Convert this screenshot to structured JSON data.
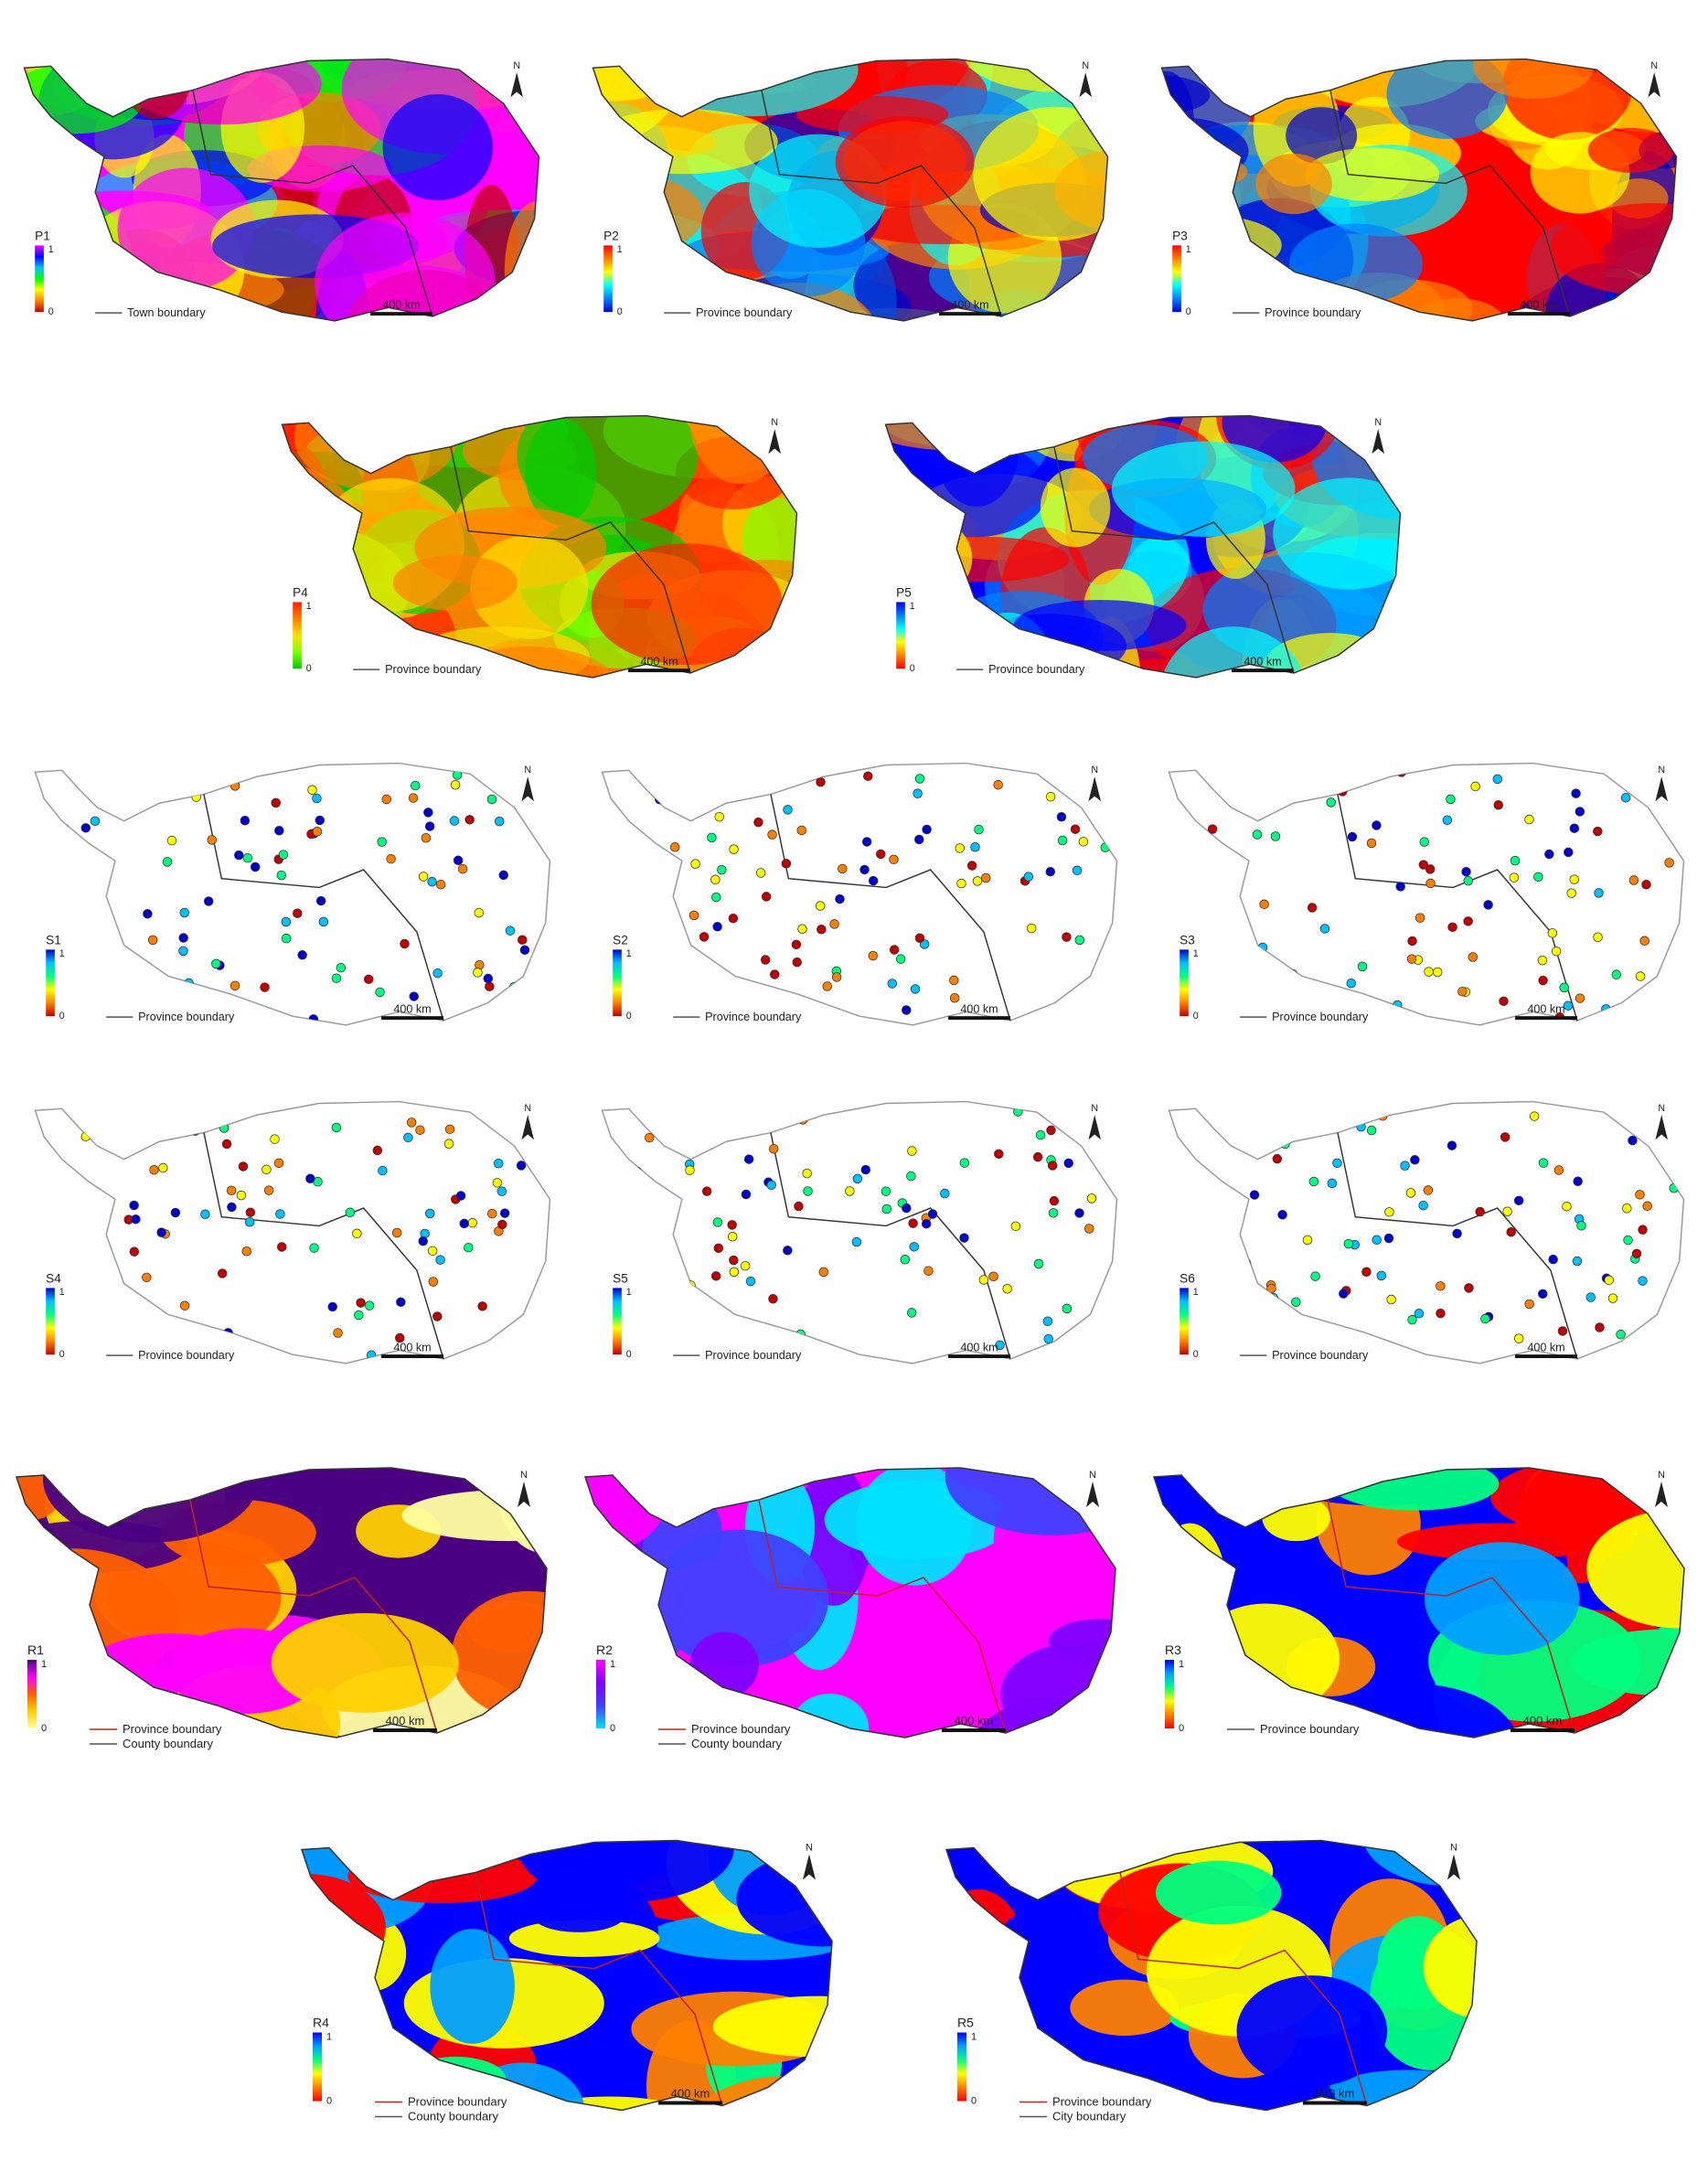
{
  "north_label": "N",
  "scale_text": "400 km",
  "range_max": "1",
  "range_min": "0",
  "panels": [
    {
      "id": "P1",
      "label": "P1",
      "ramp": [
        "#ff00ff",
        "#0000ff",
        "#00c0ff",
        "#00ff00",
        "#ffff00",
        "#ff8000",
        "#c00000"
      ],
      "legend": [
        "Town boundary"
      ],
      "style": "raster"
    },
    {
      "id": "P2",
      "label": "P2",
      "ramp": [
        "#ff0000",
        "#ff8000",
        "#ffff00",
        "#00ffff",
        "#0080ff",
        "#0000cc"
      ],
      "legend": [
        "Province boundary"
      ],
      "style": "raster"
    },
    {
      "id": "P3",
      "label": "P3",
      "ramp": [
        "#ff0000",
        "#ff8000",
        "#ffff00",
        "#00ffff",
        "#0080ff",
        "#0000cc"
      ],
      "legend": [
        "Province boundary"
      ],
      "style": "raster"
    },
    {
      "id": "P4",
      "label": "P4",
      "ramp": [
        "#ff2000",
        "#ff8000",
        "#ffe000",
        "#80ff00",
        "#00cc00"
      ],
      "legend": [
        "Province boundary"
      ],
      "style": "raster"
    },
    {
      "id": "P5",
      "label": "P5",
      "ramp": [
        "#0000ff",
        "#0080ff",
        "#00ffff",
        "#ffff00",
        "#ff8000",
        "#ff0000"
      ],
      "legend": [
        "Province boundary"
      ],
      "style": "raster"
    },
    {
      "id": "S1",
      "label": "S1",
      "ramp": [
        "#0000cc",
        "#00c0ff",
        "#00ff80",
        "#ffff00",
        "#ff8000",
        "#c00000"
      ],
      "legend": [
        "Province boundary"
      ],
      "style": "points"
    },
    {
      "id": "S2",
      "label": "S2",
      "ramp": [
        "#0000cc",
        "#00c0ff",
        "#00ff80",
        "#ffff00",
        "#ff8000",
        "#c00000"
      ],
      "legend": [
        "Province boundary"
      ],
      "style": "points"
    },
    {
      "id": "S3",
      "label": "S3",
      "ramp": [
        "#0000cc",
        "#00c0ff",
        "#00ff80",
        "#ffff00",
        "#ff8000",
        "#c00000"
      ],
      "legend": [
        "Province boundary"
      ],
      "style": "points"
    },
    {
      "id": "S4",
      "label": "S4",
      "ramp": [
        "#0000cc",
        "#00c0ff",
        "#00ff80",
        "#ffff00",
        "#ff8000",
        "#c00000"
      ],
      "legend": [
        "Province boundary"
      ],
      "style": "points"
    },
    {
      "id": "S5",
      "label": "S5",
      "ramp": [
        "#0000cc",
        "#00c0ff",
        "#00ff80",
        "#ffff00",
        "#ff8000",
        "#c00000"
      ],
      "legend": [
        "Province boundary"
      ],
      "style": "points"
    },
    {
      "id": "S6",
      "label": "S6",
      "ramp": [
        "#0000cc",
        "#00c0ff",
        "#00ff80",
        "#ffff00",
        "#ff8000",
        "#c00000"
      ],
      "legend": [
        "Province boundary"
      ],
      "style": "points"
    },
    {
      "id": "R1",
      "label": "R1",
      "ramp": [
        "#4b0082",
        "#ff00ff",
        "#ff6000",
        "#ffd000",
        "#ffffa0"
      ],
      "legend": [
        "Province boundary",
        "County boundary"
      ],
      "style": "regions"
    },
    {
      "id": "R2",
      "label": "R2",
      "ramp": [
        "#ff00ff",
        "#8000ff",
        "#4040ff",
        "#00e0ff"
      ],
      "legend": [
        "Province boundary",
        "County boundary"
      ],
      "style": "regions"
    },
    {
      "id": "R3",
      "label": "R3",
      "ramp": [
        "#0000ff",
        "#00a0ff",
        "#00ff80",
        "#ffff00",
        "#ff8000",
        "#ff0000"
      ],
      "legend": [
        "Province boundary"
      ],
      "style": "regions"
    },
    {
      "id": "R4",
      "label": "R4",
      "ramp": [
        "#0000ff",
        "#00a0ff",
        "#00ff80",
        "#ffff00",
        "#ff8000",
        "#ff0000"
      ],
      "legend": [
        "Province boundary",
        "County boundary"
      ],
      "style": "regions"
    },
    {
      "id": "R5",
      "label": "R5",
      "ramp": [
        "#0000ff",
        "#00a0ff",
        "#00ff80",
        "#ffff00",
        "#ff8000",
        "#ff0000"
      ],
      "legend": [
        "Province boundary",
        "City boundary"
      ],
      "style": "regions"
    }
  ]
}
